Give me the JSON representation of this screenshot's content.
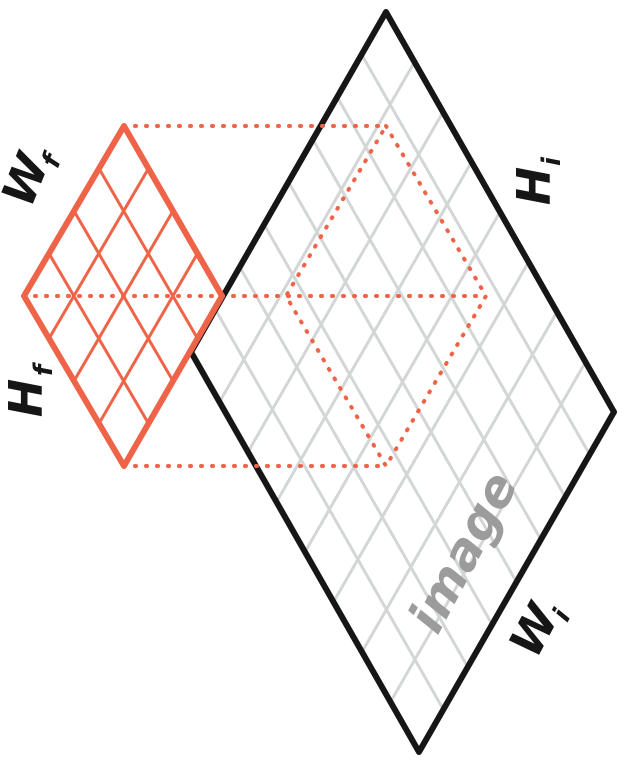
{
  "labels": {
    "image_height": "H",
    "image_width": "W",
    "filter_width": "W",
    "filter_height": "H",
    "image_text": "image"
  },
  "label_subscripts": {
    "image": "i",
    "filter": "f"
  },
  "colors": {
    "image_outline": "#161616",
    "image_grid": "#d3d6d6",
    "filter": "#ef6448",
    "image_label": "#9c9c9c",
    "background": "#ffffff"
  },
  "grid": {
    "filter_cells_per_side": 4,
    "image_cells_per_side": 8
  }
}
